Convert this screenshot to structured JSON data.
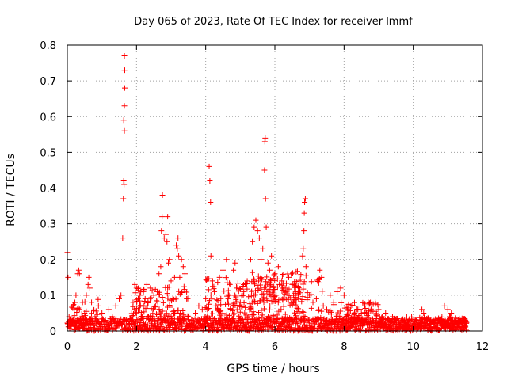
{
  "chart_data": {
    "type": "scatter",
    "title": "Day 065 of 2023, Rate Of TEC Index for receiver lmmf",
    "xlabel": "GPS time / hours",
    "ylabel": "ROTI / TECUs",
    "xlim": [
      0,
      12
    ],
    "ylim": [
      0,
      0.8
    ],
    "xticks": [
      0,
      2,
      4,
      6,
      8,
      10,
      12
    ],
    "xtick_labels": [
      "0",
      "2",
      "4",
      "6",
      "8",
      "10",
      "12"
    ],
    "yticks": [
      0,
      0.1,
      0.2,
      0.3,
      0.4,
      0.5,
      0.6,
      0.7,
      0.8
    ],
    "ytick_labels": [
      "0",
      "0.1",
      "0.2",
      "0.3",
      "0.4",
      "0.5",
      "0.6",
      "0.7",
      "0.8"
    ],
    "grid": true,
    "marker": "+",
    "color": "#ff0000",
    "series": [
      {
        "name": "ROTI",
        "points": [
          [
            0.0,
            0.22
          ],
          [
            0.02,
            0.15
          ],
          [
            0.05,
            0.04
          ],
          [
            0.1,
            0.03
          ],
          [
            0.2,
            0.06
          ],
          [
            0.25,
            0.1
          ],
          [
            0.3,
            0.16
          ],
          [
            0.33,
            0.17
          ],
          [
            0.35,
            0.16
          ],
          [
            0.4,
            0.02
          ],
          [
            0.5,
            0.05
          ],
          [
            0.55,
            0.1
          ],
          [
            0.6,
            0.13
          ],
          [
            0.62,
            0.15
          ],
          [
            0.65,
            0.12
          ],
          [
            0.7,
            0.08
          ],
          [
            0.8,
            0.04
          ],
          [
            0.9,
            0.07
          ],
          [
            1.0,
            0.05
          ],
          [
            1.1,
            0.03
          ],
          [
            1.2,
            0.06
          ],
          [
            1.3,
            0.04
          ],
          [
            1.4,
            0.07
          ],
          [
            1.5,
            0.09
          ],
          [
            1.55,
            0.1
          ],
          [
            1.6,
            0.26
          ],
          [
            1.62,
            0.37
          ],
          [
            1.63,
            0.42
          ],
          [
            1.64,
            0.41
          ],
          [
            1.63,
            0.59
          ],
          [
            1.65,
            0.56
          ],
          [
            1.65,
            0.63
          ],
          [
            1.66,
            0.68
          ],
          [
            1.64,
            0.73
          ],
          [
            1.66,
            0.73
          ],
          [
            1.65,
            0.77
          ],
          [
            1.7,
            0.03
          ],
          [
            1.8,
            0.02
          ],
          [
            1.9,
            0.08
          ],
          [
            1.95,
            0.13
          ],
          [
            2.0,
            0.12
          ],
          [
            2.05,
            0.09
          ],
          [
            2.1,
            0.1
          ],
          [
            2.2,
            0.11
          ],
          [
            2.25,
            0.09
          ],
          [
            2.3,
            0.13
          ],
          [
            2.4,
            0.12
          ],
          [
            2.5,
            0.1
          ],
          [
            2.55,
            0.07
          ],
          [
            2.6,
            0.11
          ],
          [
            2.65,
            0.16
          ],
          [
            2.7,
            0.18
          ],
          [
            2.72,
            0.28
          ],
          [
            2.74,
            0.32
          ],
          [
            2.75,
            0.38
          ],
          [
            2.8,
            0.26
          ],
          [
            2.85,
            0.27
          ],
          [
            2.88,
            0.25
          ],
          [
            2.9,
            0.32
          ],
          [
            2.92,
            0.19
          ],
          [
            2.95,
            0.2
          ],
          [
            3.0,
            0.14
          ],
          [
            3.05,
            0.09
          ],
          [
            3.1,
            0.15
          ],
          [
            3.15,
            0.24
          ],
          [
            3.18,
            0.23
          ],
          [
            3.2,
            0.26
          ],
          [
            3.22,
            0.21
          ],
          [
            3.25,
            0.15
          ],
          [
            3.3,
            0.2
          ],
          [
            3.35,
            0.18
          ],
          [
            3.4,
            0.16
          ],
          [
            3.45,
            0.09
          ],
          [
            3.5,
            0.04
          ],
          [
            3.6,
            0.03
          ],
          [
            3.7,
            0.05
          ],
          [
            3.8,
            0.07
          ],
          [
            3.9,
            0.06
          ],
          [
            4.0,
            0.09
          ],
          [
            4.05,
            0.06
          ],
          [
            4.1,
            0.46
          ],
          [
            4.12,
            0.42
          ],
          [
            4.14,
            0.36
          ],
          [
            4.15,
            0.21
          ],
          [
            4.2,
            0.14
          ],
          [
            4.25,
            0.11
          ],
          [
            4.3,
            0.07
          ],
          [
            4.4,
            0.15
          ],
          [
            4.5,
            0.17
          ],
          [
            4.6,
            0.2
          ],
          [
            4.65,
            0.09
          ],
          [
            4.7,
            0.13
          ],
          [
            4.8,
            0.17
          ],
          [
            4.85,
            0.19
          ],
          [
            4.9,
            0.12
          ],
          [
            5.0,
            0.08
          ],
          [
            5.1,
            0.11
          ],
          [
            5.2,
            0.14
          ],
          [
            5.3,
            0.2
          ],
          [
            5.35,
            0.25
          ],
          [
            5.4,
            0.29
          ],
          [
            5.45,
            0.31
          ],
          [
            5.5,
            0.28
          ],
          [
            5.55,
            0.26
          ],
          [
            5.6,
            0.2
          ],
          [
            5.65,
            0.23
          ],
          [
            5.7,
            0.45
          ],
          [
            5.71,
            0.53
          ],
          [
            5.72,
            0.54
          ],
          [
            5.73,
            0.37
          ],
          [
            5.75,
            0.29
          ],
          [
            5.8,
            0.19
          ],
          [
            5.85,
            0.17
          ],
          [
            5.9,
            0.21
          ],
          [
            6.0,
            0.16
          ],
          [
            6.1,
            0.18
          ],
          [
            6.2,
            0.14
          ],
          [
            6.3,
            0.12
          ],
          [
            6.4,
            0.15
          ],
          [
            6.5,
            0.13
          ],
          [
            6.6,
            0.11
          ],
          [
            6.7,
            0.14
          ],
          [
            6.8,
            0.21
          ],
          [
            6.82,
            0.23
          ],
          [
            6.84,
            0.28
          ],
          [
            6.85,
            0.33
          ],
          [
            6.86,
            0.36
          ],
          [
            6.88,
            0.37
          ],
          [
            6.9,
            0.18
          ],
          [
            7.0,
            0.1
          ],
          [
            7.1,
            0.08
          ],
          [
            7.2,
            0.09
          ],
          [
            7.3,
            0.17
          ],
          [
            7.35,
            0.15
          ],
          [
            7.4,
            0.07
          ],
          [
            7.5,
            0.06
          ],
          [
            7.6,
            0.1
          ],
          [
            7.7,
            0.08
          ],
          [
            7.8,
            0.11
          ],
          [
            7.9,
            0.12
          ],
          [
            8.0,
            0.1
          ],
          [
            8.1,
            0.06
          ],
          [
            8.2,
            0.07
          ],
          [
            8.3,
            0.05
          ],
          [
            8.4,
            0.06
          ],
          [
            8.5,
            0.05
          ],
          [
            8.6,
            0.07
          ],
          [
            8.7,
            0.08
          ],
          [
            8.8,
            0.07
          ],
          [
            8.9,
            0.08
          ],
          [
            9.0,
            0.06
          ],
          [
            9.1,
            0.04
          ],
          [
            9.2,
            0.05
          ],
          [
            9.3,
            0.03
          ],
          [
            9.4,
            0.04
          ],
          [
            9.5,
            0.03
          ],
          [
            9.6,
            0.02
          ],
          [
            9.7,
            0.03
          ],
          [
            9.8,
            0.02
          ],
          [
            9.9,
            0.03
          ],
          [
            10.0,
            0.02
          ],
          [
            10.1,
            0.03
          ],
          [
            10.2,
            0.02
          ],
          [
            10.25,
            0.06
          ],
          [
            10.3,
            0.05
          ],
          [
            10.4,
            0.02
          ],
          [
            10.5,
            0.02
          ],
          [
            10.6,
            0.02
          ],
          [
            10.7,
            0.02
          ],
          [
            10.8,
            0.03
          ],
          [
            10.9,
            0.07
          ],
          [
            11.0,
            0.06
          ],
          [
            11.05,
            0.04
          ],
          [
            11.1,
            0.05
          ],
          [
            11.2,
            0.02
          ],
          [
            11.3,
            0.03
          ],
          [
            11.4,
            0.02
          ],
          [
            11.5,
            0.03
          ]
        ],
        "baseline": {
          "x_range": [
            0,
            11.55
          ],
          "step": 0.02,
          "y_range": [
            0.0,
            0.035
          ]
        },
        "clusters": [
          {
            "x_range": [
              0.05,
              0.9
            ],
            "y_range": [
              0.02,
              0.09
            ]
          },
          {
            "x_range": [
              1.85,
              3.5
            ],
            "y_range": [
              0.04,
              0.13
            ]
          },
          {
            "x_range": [
              3.9,
              7.4
            ],
            "y_range": [
              0.03,
              0.15
            ]
          },
          {
            "x_range": [
              5.3,
              6.9
            ],
            "y_range": [
              0.08,
              0.17
            ]
          },
          {
            "x_range": [
              7.4,
              9.0
            ],
            "y_range": [
              0.02,
              0.08
            ]
          },
          {
            "x_range": [
              9.0,
              11.55
            ],
            "y_range": [
              0.005,
              0.04
            ]
          }
        ]
      }
    ]
  }
}
